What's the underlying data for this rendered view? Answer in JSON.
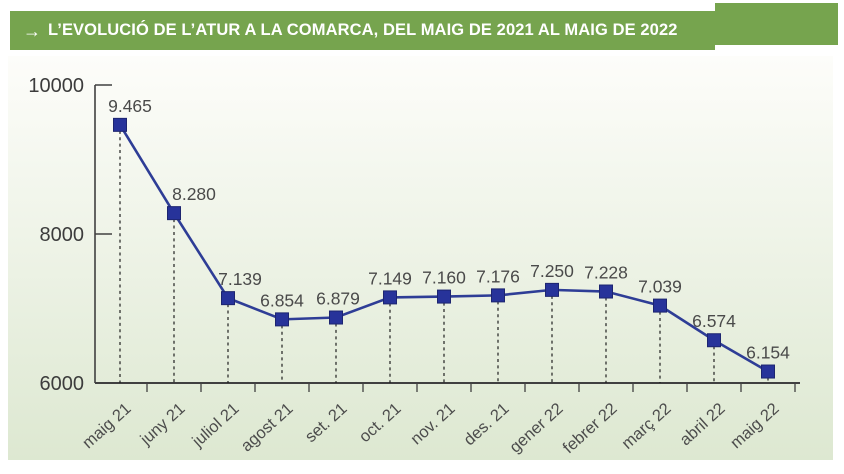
{
  "header": {
    "arrow": "→",
    "title": "L’EVOLUCIÓ DE L’ATUR A LA COMARCA, DEL MAIG DE 2021 AL MAIG DE 2022"
  },
  "chart_data": {
    "type": "line",
    "title": "L’EVOLUCIÓ DE L’ATUR A LA COMARCA, DEL MAIG DE 2021 AL MAIG DE 2022",
    "categories": [
      "maig 21",
      "juny 21",
      "juliol 21",
      "agost 21",
      "set. 21",
      "oct. 21",
      "nov. 21",
      "des. 21",
      "gener 22",
      "febrer 22",
      "març 22",
      "abril 22",
      "maig 22"
    ],
    "values": [
      9465,
      8280,
      7139,
      6854,
      6879,
      7149,
      7160,
      7176,
      7250,
      7228,
      7039,
      6574,
      6154
    ],
    "point_labels": [
      "9.465",
      "8.280",
      "7.139",
      "6.854",
      "6.879",
      "7.149",
      "7.160",
      "7.176",
      "7.250",
      "7.228",
      "7.039",
      "6.574",
      "6.154"
    ],
    "y_ticks": [
      {
        "label": "10000",
        "value": 10000
      },
      {
        "label": "8000",
        "value": 8000
      },
      {
        "label": "6000",
        "value": 6000
      }
    ],
    "ylim": [
      6000,
      10000
    ],
    "xlabel": "",
    "ylabel": "",
    "marker": "square",
    "grid": false,
    "legend": "none",
    "colors": {
      "banner_green": "#76a44e",
      "line_blue": "#2e3d96",
      "marker_blue": "#27339a",
      "marker_border": "#1d2570",
      "axis_gray": "#404040",
      "drop_line": "#1f1f1f",
      "bg_top": "#fdfdfa",
      "bg_bottom": "#dde8d1"
    }
  }
}
